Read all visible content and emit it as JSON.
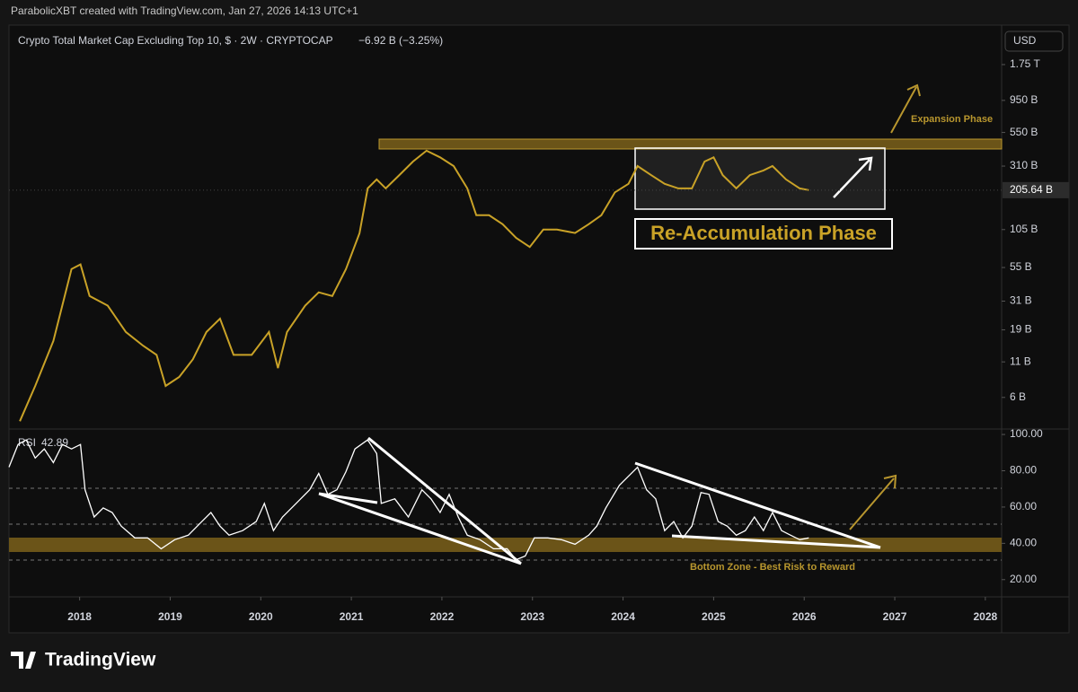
{
  "header": "ParabolicXBT created with TradingView.com, Jan 27, 2026 14:13 UTC+1",
  "logo": "TradingView",
  "chart_data": [
    {
      "type": "line",
      "title": "Crypto Total Market Cap Excluding Top 10, $ · 2W · CRYPTOCAP",
      "change": "−6.92 B (−3.25%)",
      "currency": "USD",
      "log_scale": true,
      "color": "#c9a227",
      "xlim": [
        2017.22,
        2028.18
      ],
      "ylim": [
        3.5,
        3430
      ],
      "yticks": [
        {
          "value": 1750,
          "label": "1.75 T"
        },
        {
          "value": 950,
          "label": "950 B"
        },
        {
          "value": 550,
          "label": "550 B"
        },
        {
          "value": 310,
          "label": "310 B"
        },
        {
          "value": 105,
          "label": "105 B"
        },
        {
          "value": 55,
          "label": "55 B"
        },
        {
          "value": 31,
          "label": "31 B"
        },
        {
          "value": 19,
          "label": "19 B"
        },
        {
          "value": 11,
          "label": "11 B"
        },
        {
          "value": 6,
          "label": "6 B"
        }
      ],
      "last_price": 205.64,
      "last_price_label": "205.64 B",
      "annotations": [
        "Expansion Phase",
        "Re-Accumulation Phase"
      ],
      "x": [
        2017.34,
        2017.51,
        2017.71,
        2017.91,
        2018.01,
        2018.11,
        2018.31,
        2018.51,
        2018.7,
        2018.85,
        2018.95,
        2019.1,
        2019.25,
        2019.4,
        2019.55,
        2019.7,
        2019.9,
        2020.09,
        2020.19,
        2020.29,
        2020.49,
        2020.64,
        2020.79,
        2020.94,
        2021.09,
        2021.18,
        2021.28,
        2021.38,
        2021.53,
        2021.68,
        2021.83,
        2021.98,
        2022.13,
        2022.28,
        2022.38,
        2022.52,
        2022.67,
        2022.82,
        2022.97,
        2023.12,
        2023.27,
        2023.47,
        2023.62,
        2023.76,
        2023.91,
        2024.06,
        2024.16,
        2024.31,
        2024.46,
        2024.61,
        2024.76,
        2024.9,
        2025.0,
        2025.1,
        2025.25,
        2025.4,
        2025.55,
        2025.65,
        2025.8,
        2025.95,
        2026.05
      ],
      "values": [
        4.0,
        7.3,
        15.7,
        53.5,
        58,
        33.8,
        28.7,
        18.3,
        14.5,
        12.4,
        7.3,
        8.5,
        11.5,
        18.3,
        23,
        12.4,
        12.4,
        18.3,
        9.9,
        18.3,
        28.7,
        36,
        33.8,
        53.5,
        98.6,
        212,
        247,
        212,
        266,
        335,
        403,
        360,
        310,
        212,
        134,
        134,
        115,
        91,
        78,
        105,
        105,
        99,
        115,
        134,
        198,
        229,
        310,
        266,
        229,
        212,
        212,
        335,
        360,
        266,
        212,
        266,
        288,
        310,
        247,
        212,
        206
      ]
    },
    {
      "type": "line",
      "series_label": "RSI",
      "last_value": 42.89,
      "color": "#ffffff",
      "xlim": [
        2017.22,
        2028.18
      ],
      "xticks": [
        2018,
        2019,
        2020,
        2021,
        2022,
        2023,
        2024,
        2025,
        2026,
        2027,
        2028
      ],
      "ylim": [
        10.5,
        103
      ],
      "yticks": [
        {
          "value": 100,
          "label": "100.00"
        },
        {
          "value": 80,
          "label": "80.00"
        },
        {
          "value": 60,
          "label": "60.00"
        },
        {
          "value": 40,
          "label": "40.00"
        },
        {
          "value": 20,
          "label": "20.00"
        }
      ],
      "annotations": [
        "Bottom Zone - Best Risk to Reward"
      ],
      "x": [
        2017.22,
        2017.32,
        2017.41,
        2017.51,
        2017.61,
        2017.71,
        2017.81,
        2017.91,
        2018.01,
        2018.06,
        2018.16,
        2018.26,
        2018.36,
        2018.46,
        2018.61,
        2018.75,
        2018.9,
        2019.05,
        2019.2,
        2019.35,
        2019.45,
        2019.55,
        2019.65,
        2019.8,
        2019.95,
        2020.04,
        2020.14,
        2020.24,
        2020.39,
        2020.54,
        2020.64,
        2020.74,
        2020.84,
        2020.94,
        2021.04,
        2021.18,
        2021.28,
        2021.33,
        2021.48,
        2021.63,
        2021.78,
        2021.88,
        2021.98,
        2022.08,
        2022.18,
        2022.28,
        2022.42,
        2022.57,
        2022.72,
        2022.82,
        2022.92,
        2023.02,
        2023.17,
        2023.32,
        2023.47,
        2023.62,
        2023.71,
        2023.81,
        2023.96,
        2024.06,
        2024.16,
        2024.26,
        2024.36,
        2024.46,
        2024.56,
        2024.66,
        2024.76,
        2024.86,
        2024.95,
        2025.05,
        2025.15,
        2025.25,
        2025.35,
        2025.45,
        2025.55,
        2025.65,
        2025.75,
        2025.85,
        2025.95,
        2026.05
      ],
      "values": [
        82,
        94.5,
        97,
        87,
        92,
        84.5,
        94.5,
        92,
        94.5,
        69.5,
        54.5,
        59.5,
        57,
        49.5,
        43,
        43,
        37,
        42,
        44.5,
        52,
        57,
        49.5,
        44.5,
        47,
        52,
        62,
        47,
        54.5,
        62,
        69.5,
        78.5,
        67,
        69.5,
        79.5,
        92,
        97,
        89.5,
        62,
        64.5,
        54.5,
        69.5,
        64.5,
        57,
        67,
        54.5,
        44.5,
        42,
        37,
        37,
        31,
        33,
        43,
        43,
        42,
        39.5,
        44.5,
        49.5,
        59.5,
        72,
        77,
        82,
        69.5,
        64.5,
        47,
        52,
        43,
        49.5,
        68,
        67,
        52,
        49.5,
        44.5,
        47,
        54.5,
        47,
        57,
        47,
        44.5,
        42,
        43
      ]
    }
  ]
}
